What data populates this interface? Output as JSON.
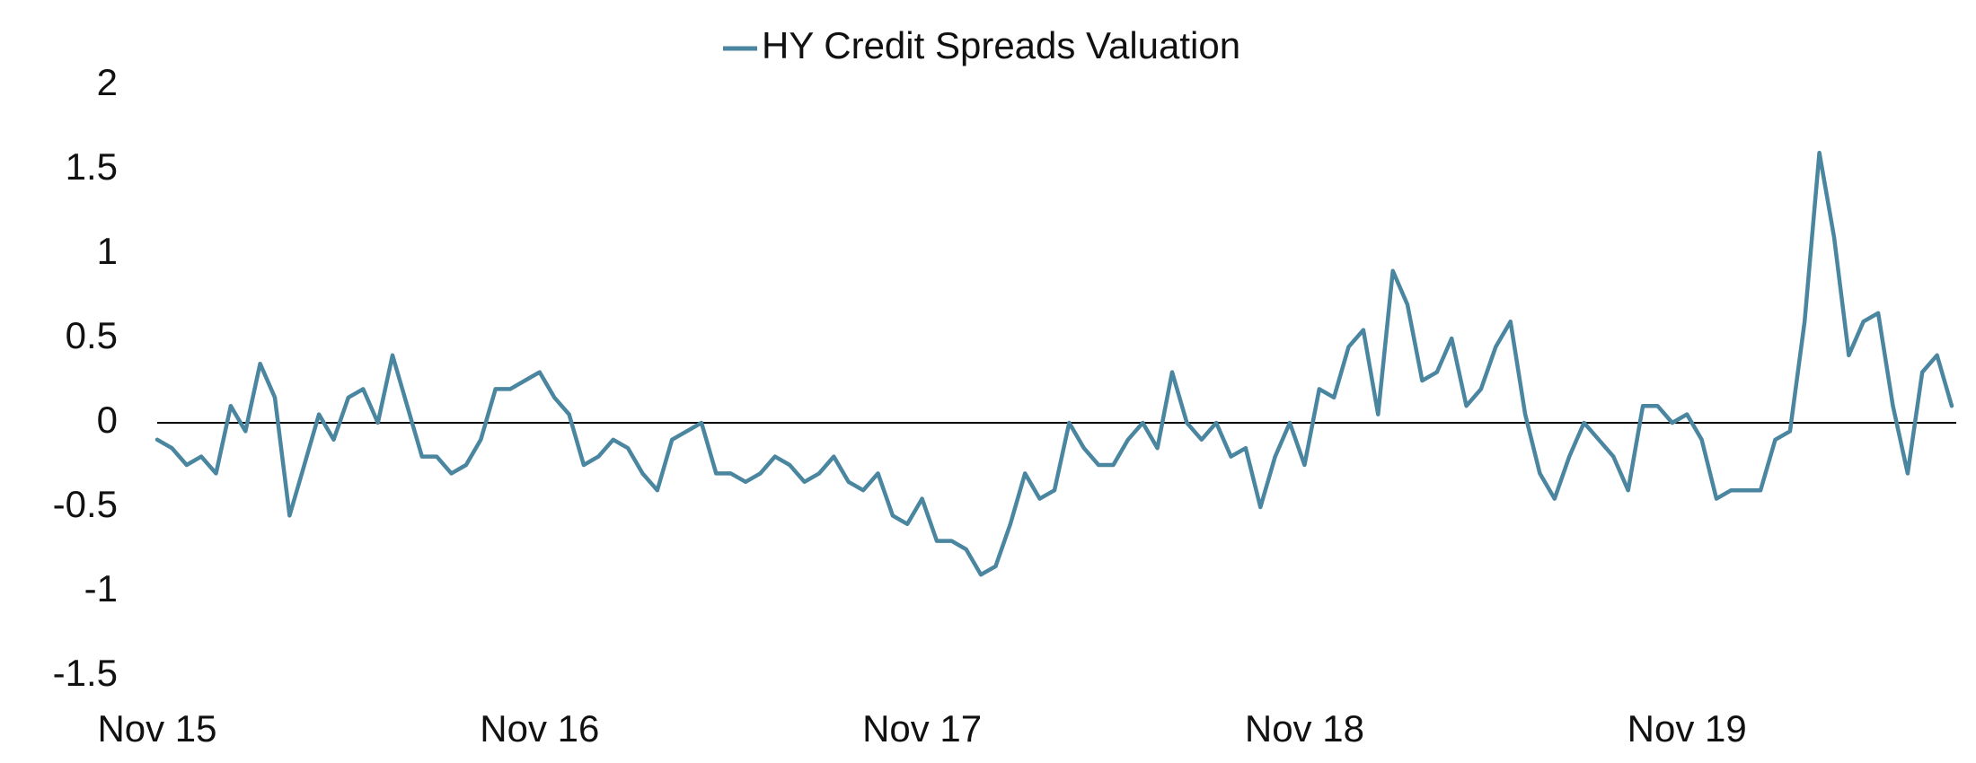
{
  "chart_data": {
    "type": "line",
    "categories": [
      "Nov 15",
      null,
      null,
      null,
      null,
      null,
      null,
      null,
      null,
      null,
      null,
      null,
      null,
      null,
      null,
      null,
      null,
      null,
      null,
      null,
      null,
      null,
      null,
      null,
      null,
      null,
      "Nov 16",
      null,
      null,
      null,
      null,
      null,
      null,
      null,
      null,
      null,
      null,
      null,
      null,
      null,
      null,
      null,
      null,
      null,
      null,
      null,
      null,
      null,
      null,
      null,
      null,
      null,
      "Nov 17",
      null,
      null,
      null,
      null,
      null,
      null,
      null,
      null,
      null,
      null,
      null,
      null,
      null,
      null,
      null,
      null,
      null,
      null,
      null,
      null,
      null,
      null,
      null,
      null,
      null,
      "Nov 18",
      null,
      null,
      null,
      null,
      null,
      null,
      null,
      null,
      null,
      null,
      null,
      null,
      null,
      null,
      null,
      null,
      null,
      null,
      null,
      null,
      null,
      null,
      null,
      null,
      null,
      "Nov 19",
      null,
      null,
      null,
      null,
      null,
      null,
      null,
      null,
      null,
      null,
      null,
      null,
      null,
      null,
      null,
      null,
      null,
      null
    ],
    "series": [
      {
        "name": "HY Credit Spreads Valuation",
        "color": "#4a86a0",
        "values": [
          -0.1,
          -0.15,
          -0.25,
          -0.2,
          -0.3,
          0.1,
          -0.05,
          0.35,
          0.15,
          -0.55,
          -0.25,
          0.05,
          -0.1,
          0.15,
          0.2,
          0,
          0.4,
          0.1,
          -0.2,
          -0.2,
          -0.3,
          -0.25,
          -0.1,
          0.2,
          0.2,
          0.25,
          0.3,
          0.15,
          0.05,
          -0.25,
          -0.2,
          -0.1,
          -0.15,
          -0.3,
          -0.4,
          -0.1,
          -0.05,
          0,
          -0.3,
          -0.3,
          -0.35,
          -0.3,
          -0.2,
          -0.25,
          -0.35,
          -0.3,
          -0.2,
          -0.35,
          -0.4,
          -0.3,
          -0.55,
          -0.6,
          -0.45,
          -0.7,
          -0.7,
          -0.75,
          -0.9,
          -0.85,
          -0.6,
          -0.3,
          -0.45,
          -0.4,
          0,
          -0.15,
          -0.25,
          -0.25,
          -0.1,
          0,
          -0.15,
          0.3,
          0,
          -0.1,
          0,
          -0.2,
          -0.15,
          -0.5,
          -0.2,
          0,
          -0.25,
          0.2,
          0.15,
          0.45,
          0.55,
          0.05,
          0.9,
          0.7,
          0.25,
          0.3,
          0.5,
          0.1,
          0.2,
          0.45,
          0.6,
          0.05,
          -0.3,
          -0.45,
          -0.2,
          0,
          -0.1,
          -0.2,
          -0.4,
          0.1,
          0.1,
          0,
          0.05,
          -0.1,
          -0.45,
          -0.4,
          -0.4,
          -0.4,
          -0.1,
          -0.05,
          0.6,
          1.6,
          1.1,
          0.4,
          0.6,
          0.65,
          0.1,
          -0.3,
          0.3,
          0.4,
          0.1
        ]
      }
    ],
    "ylim": [
      -1.5,
      2
    ],
    "yticks": [
      -1.5,
      -1,
      -0.5,
      0,
      0.5,
      1,
      1.5,
      2
    ],
    "grid": false,
    "legend": "top"
  }
}
